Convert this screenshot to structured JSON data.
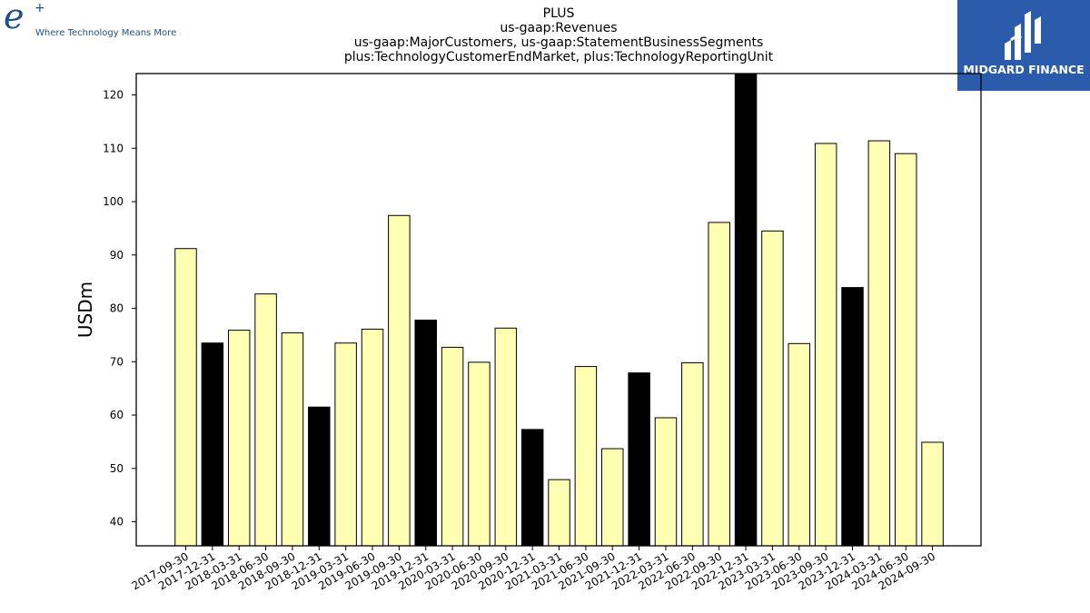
{
  "logos": {
    "left_letter": "e",
    "left_plus": "+",
    "left_tagline": "Where Technology Means More",
    "right_brand": "MIDGARD FINANCE"
  },
  "colors": {
    "bar_default": "#ffffb3",
    "bar_highlight": "#000000",
    "bar_edge": "#000000",
    "logo_blue": "#1f4e8c",
    "brand_background": "#2b5bab"
  },
  "chart_data": {
    "type": "bar",
    "title_lines": [
      "PLUS",
      "us-gaap:Revenues",
      "us-gaap:MajorCustomers, us-gaap:StatementBusinessSegments",
      "plus:TechnologyCustomerEndMarket, plus:TechnologyReportingUnit"
    ],
    "xlabel": "",
    "ylabel": "USDm",
    "ylim": [
      35.5,
      124
    ],
    "yticks": [
      40,
      50,
      60,
      70,
      80,
      90,
      100,
      110,
      120
    ],
    "grid": false,
    "legend": "none",
    "categories": [
      "2017-09-30",
      "2017-12-31",
      "2018-03-31",
      "2018-06-30",
      "2018-09-30",
      "2018-12-31",
      "2019-03-31",
      "2019-06-30",
      "2019-09-30",
      "2019-12-31",
      "2020-03-31",
      "2020-06-30",
      "2020-09-30",
      "2020-12-31",
      "2021-03-31",
      "2021-06-30",
      "2021-09-30",
      "2021-12-31",
      "2022-03-31",
      "2022-06-30",
      "2022-09-30",
      "2022-12-31",
      "2023-03-31",
      "2023-06-30",
      "2023-09-30",
      "2023-12-31",
      "2024-03-31",
      "2024-06-30",
      "2024-09-30"
    ],
    "values": [
      91.2,
      73.5,
      75.9,
      82.7,
      75.4,
      61.5,
      73.5,
      76.1,
      97.4,
      77.8,
      72.7,
      69.9,
      76.3,
      57.3,
      47.9,
      69.1,
      53.7,
      67.9,
      59.5,
      69.8,
      96.1,
      124,
      94.5,
      73.4,
      110.9,
      83.9,
      111.4,
      109.0,
      54.9
    ],
    "highlight": [
      false,
      true,
      false,
      false,
      false,
      true,
      false,
      false,
      false,
      true,
      false,
      false,
      false,
      true,
      false,
      false,
      false,
      true,
      false,
      false,
      false,
      true,
      false,
      false,
      false,
      true,
      false,
      false,
      false
    ]
  }
}
